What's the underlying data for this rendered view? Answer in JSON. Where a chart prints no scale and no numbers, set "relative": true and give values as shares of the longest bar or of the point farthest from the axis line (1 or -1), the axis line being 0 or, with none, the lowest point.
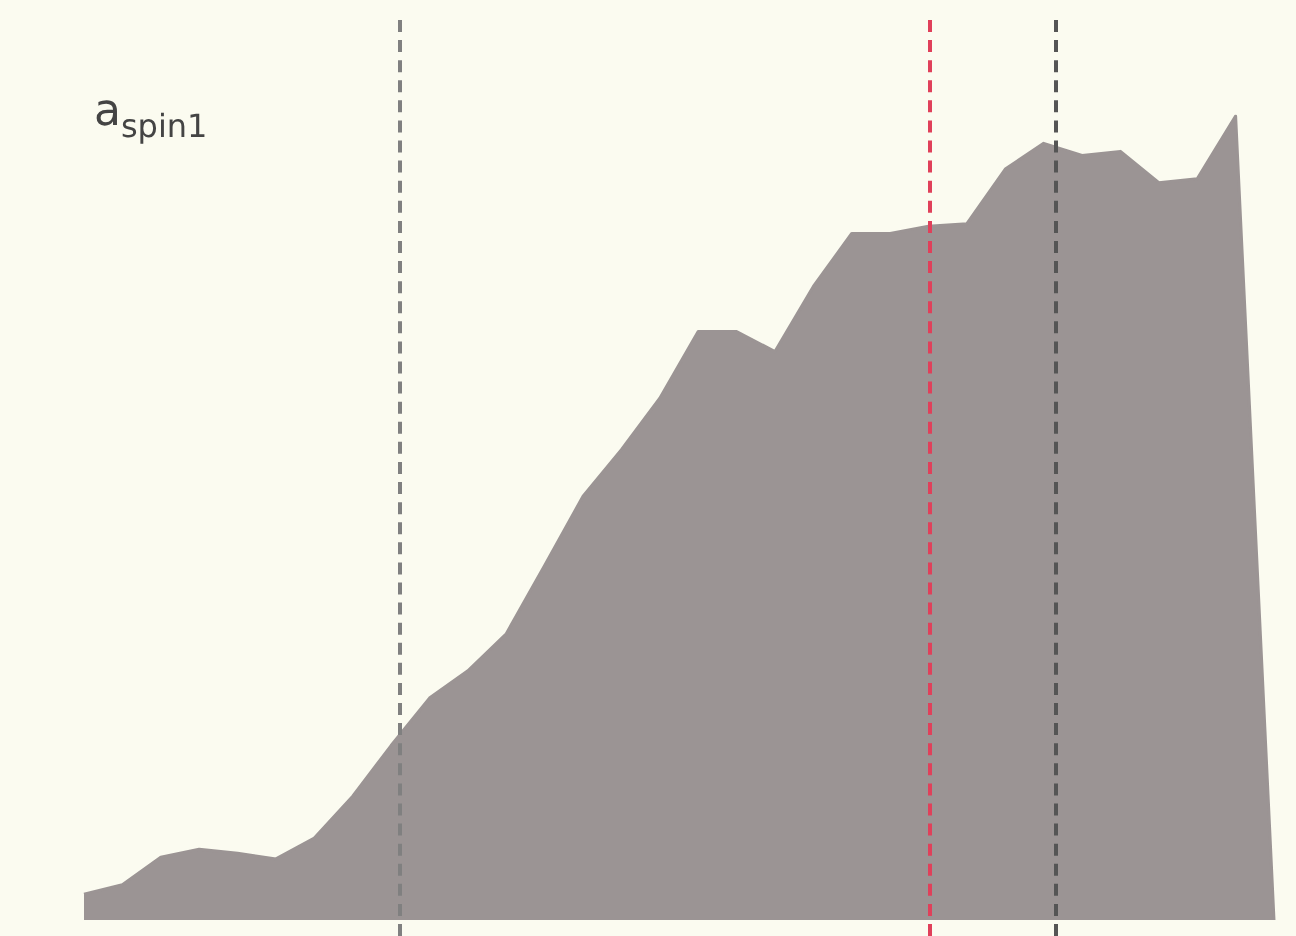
{
  "chart_data": {
    "type": "area",
    "title": "a$_{spin1}$",
    "relative": true,
    "categories": [
      null,
      null,
      null,
      null,
      null,
      null,
      null,
      null,
      null,
      null,
      null,
      null,
      null,
      null,
      null,
      null,
      null,
      null,
      null,
      null,
      null,
      null,
      null,
      null,
      null,
      null,
      null,
      null,
      null,
      null,
      null,
      null
    ],
    "series": [
      {
        "color": "#9b9494",
        "values": [
          0.032,
          0.044,
          0.078,
          0.088,
          0.083,
          0.076,
          0.102,
          0.154,
          0.217,
          0.276,
          0.31,
          0.356,
          0.441,
          0.527,
          0.585,
          0.649,
          0.732,
          0.732,
          0.707,
          0.788,
          0.854,
          0.854,
          0.863,
          0.866,
          0.934,
          0.966,
          0.951,
          0.956,
          0.917,
          0.922,
          1,
          0
        ]
      }
    ],
    "grid": false
  }
}
